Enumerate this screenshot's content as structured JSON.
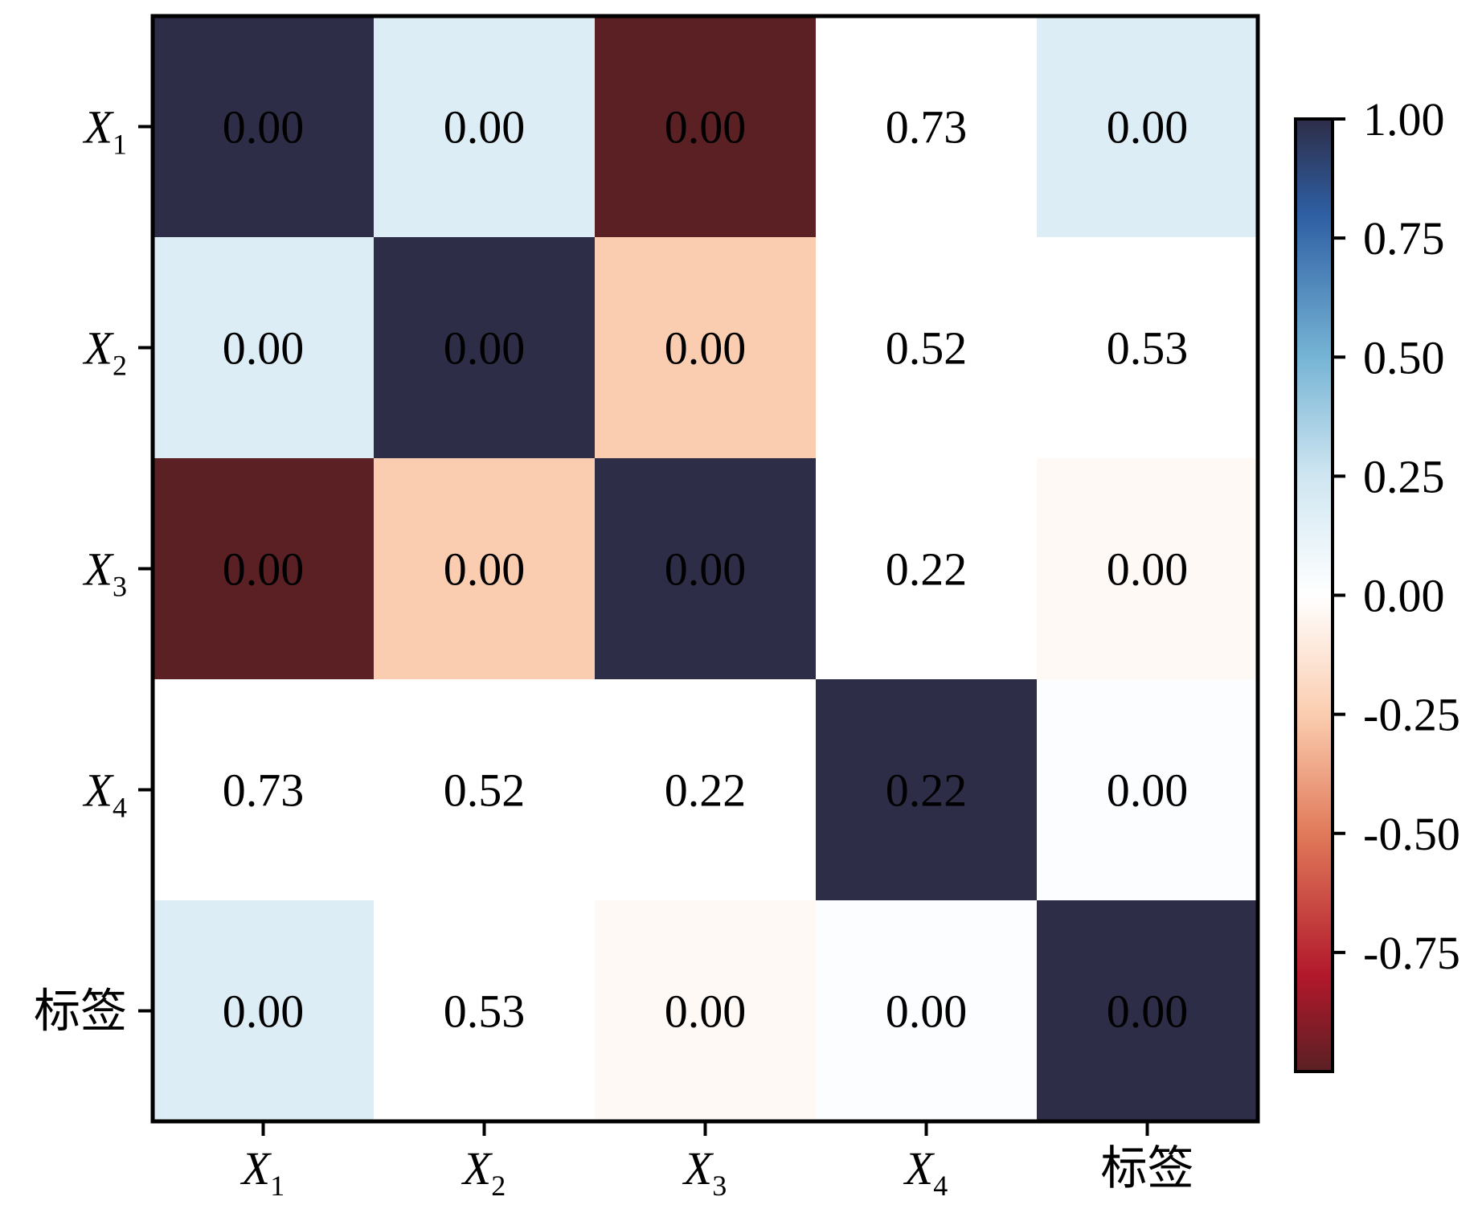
{
  "chart_data": {
    "type": "heatmap",
    "title": "",
    "xlabel": "",
    "ylabel": "",
    "row_labels": [
      {
        "base": "X",
        "sub": "1"
      },
      {
        "base": "X",
        "sub": "2"
      },
      {
        "base": "X",
        "sub": "3"
      },
      {
        "base": "X",
        "sub": "4"
      },
      {
        "base": "标签",
        "sub": ""
      }
    ],
    "col_labels": [
      {
        "base": "X",
        "sub": "1"
      },
      {
        "base": "X",
        "sub": "2"
      },
      {
        "base": "X",
        "sub": "3"
      },
      {
        "base": "X",
        "sub": "4"
      },
      {
        "base": "标签",
        "sub": ""
      }
    ],
    "values": [
      [
        1.0,
        0.18,
        -1.0,
        0.0,
        0.18
      ],
      [
        0.18,
        1.0,
        -0.25,
        0.0,
        0.0
      ],
      [
        -1.0,
        -0.25,
        1.0,
        0.0,
        -0.03
      ],
      [
        0.0,
        0.0,
        0.0,
        1.0,
        0.02
      ],
      [
        0.18,
        0.0,
        -0.03,
        0.02,
        1.0
      ]
    ],
    "annotations": [
      [
        "0.00",
        "0.00",
        "0.00",
        "0.73",
        "0.00"
      ],
      [
        "0.00",
        "0.00",
        "0.00",
        "0.52",
        "0.53"
      ],
      [
        "0.00",
        "0.00",
        "0.00",
        "0.22",
        "0.00"
      ],
      [
        "0.73",
        "0.52",
        "0.22",
        "0.22",
        "0.00"
      ],
      [
        "0.00",
        "0.53",
        "0.00",
        "0.00",
        "0.00"
      ]
    ],
    "colorbar": {
      "range": [
        -1.0,
        1.0
      ],
      "ticks": [
        "1.00",
        "0.75",
        "0.50",
        "0.25",
        "0.00",
        "-0.25",
        "-0.50",
        "-0.75"
      ],
      "tick_values": [
        1.0,
        0.75,
        0.5,
        0.25,
        0.0,
        -0.25,
        -0.5,
        -0.75
      ],
      "colormap": "RdBu",
      "stops": [
        {
          "v": -1.0,
          "color": "#5a2024"
        },
        {
          "v": -0.8,
          "color": "#b2182b"
        },
        {
          "v": -0.5,
          "color": "#e07a5a"
        },
        {
          "v": -0.25,
          "color": "#fbcdb0"
        },
        {
          "v": 0.0,
          "color": "#ffffff"
        },
        {
          "v": 0.25,
          "color": "#cfe6f1"
        },
        {
          "v": 0.5,
          "color": "#76b4d5"
        },
        {
          "v": 0.8,
          "color": "#2e5fa3"
        },
        {
          "v": 1.0,
          "color": "#2e2d48"
        }
      ]
    },
    "grid": false
  }
}
